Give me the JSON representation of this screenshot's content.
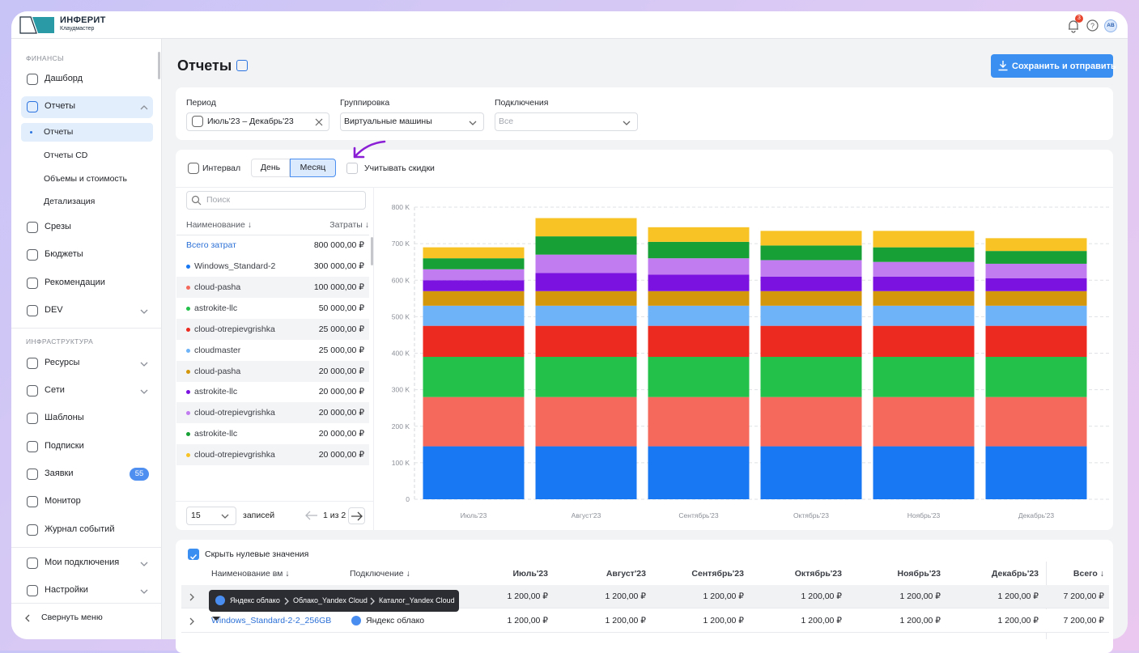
{
  "header": {
    "logo": "ИНФЕРИТ",
    "logo_sub": "Клаудмастер",
    "notifications": "3",
    "avatar": "AB"
  },
  "sidebar": {
    "groups": [
      {
        "title": "ФИНАНСЫ",
        "items": [
          {
            "label": "Дашборд"
          },
          {
            "label": "Отчеты",
            "children": [
              "Отчеты",
              "Отчеты CD",
              "Объемы и стоимость",
              "Детализация"
            ]
          },
          {
            "label": "Срезы"
          },
          {
            "label": "Бюджеты"
          },
          {
            "label": "Рекомендации"
          },
          {
            "label": "DEV"
          }
        ]
      },
      {
        "title": "ИНФРАСТРУКТУРА",
        "items": [
          {
            "label": "Ресурсы"
          },
          {
            "label": "Сети"
          },
          {
            "label": "Шаблоны"
          },
          {
            "label": "Подписки"
          },
          {
            "label": "Заявки",
            "badge": "55"
          },
          {
            "label": "Монитор"
          },
          {
            "label": "Журнал событий"
          }
        ]
      },
      {
        "items": [
          {
            "label": "Мои подключения"
          },
          {
            "label": "Настройки"
          }
        ]
      }
    ],
    "collapse": "Свернуть меню"
  },
  "page": {
    "title": "Отчеты",
    "action": "Сохранить и отправить"
  },
  "filters": [
    {
      "label": "Период",
      "value": "Июль'23 – Декабрь'23"
    },
    {
      "label": "Группировка",
      "value": "Виртуальные машины"
    },
    {
      "label": "Подключения",
      "value": "Все"
    }
  ],
  "toolbar": {
    "interval": "Интервал",
    "options": [
      "День",
      "Месяц"
    ],
    "discounts": "Учитывать скидки"
  },
  "cost_list": {
    "search": "Поиск",
    "headers": [
      "Наименование ↓",
      "Затраты ↓"
    ],
    "total_label": "Всего затрат",
    "total": "800 000,00 ₽",
    "amounts": [
      "300 000,00 ₽",
      "100 000,00 ₽",
      "50 000,00 ₽",
      "25 000,00 ₽",
      "25 000,00 ₽",
      "20 000,00 ₽",
      "20 000,00 ₽",
      "20 000,00 ₽",
      "20 000,00 ₽",
      "20 000,00 ₽"
    ],
    "page_size": "15",
    "page_size_label": "записей",
    "page": "1 из 2"
  },
  "chart_data": {
    "type": "stacked_bar",
    "categories": [
      "Июль'23",
      "Август'23",
      "Сентябрь'23",
      "Октябрь'23",
      "Ноябрь'23",
      "Декабрь'23"
    ],
    "series": [
      {
        "name": "Windows_Standard-2-2_256GB",
        "color": "#1877f2",
        "values": [
          145000,
          145000,
          145000,
          145000,
          145000,
          145000
        ]
      },
      {
        "name": "cloud-pasha",
        "color": "#f4695c",
        "values": [
          135000,
          135000,
          135000,
          135000,
          135000,
          135000
        ]
      },
      {
        "name": "astrokite-llc",
        "color": "#23c04a",
        "values": [
          110000,
          110000,
          110000,
          110000,
          110000,
          110000
        ]
      },
      {
        "name": "cloud-otrepievgrishka",
        "color": "#ed2a1f",
        "values": [
          85000,
          85000,
          85000,
          85000,
          85000,
          85000
        ]
      },
      {
        "name": "cloudmaster",
        "color": "#6eb3f7",
        "values": [
          55000,
          55000,
          55000,
          55000,
          55000,
          55000
        ]
      },
      {
        "name": "cloud-pasha",
        "color": "#d4960b",
        "values": [
          40000,
          40000,
          40000,
          40000,
          40000,
          40000
        ]
      },
      {
        "name": "astrokite-llc",
        "color": "#7c12e0",
        "values": [
          30000,
          50000,
          45000,
          40000,
          40000,
          35000
        ]
      },
      {
        "name": "cloud-otrepievgrishka",
        "color": "#c17cf0",
        "values": [
          30000,
          50000,
          45000,
          45000,
          40000,
          40000
        ]
      },
      {
        "name": "astrokite-llc",
        "color": "#17a035",
        "values": [
          30000,
          50000,
          45000,
          40000,
          40000,
          35000
        ]
      },
      {
        "name": "cloud-otrepievgrishka",
        "color": "#f7c325",
        "values": [
          30000,
          50000,
          40000,
          40000,
          45000,
          35000
        ]
      }
    ],
    "ylim": [
      0,
      800000
    ],
    "yticks": [
      0,
      {
        "value": 100000,
        "label": "100 K"
      },
      {
        "value": 200000,
        "label": "200 K"
      },
      {
        "value": 300000,
        "label": "300 K"
      },
      {
        "value": 400000,
        "label": "400 K"
      },
      {
        "value": 500000,
        "label": "500 K"
      },
      {
        "value": 600000,
        "label": "600 K"
      },
      {
        "value": 700000,
        "label": "700 K"
      },
      {
        "value": 800000,
        "label": "800 K"
      }
    ],
    "grid": true
  },
  "table": {
    "hide_zero": "Скрыть нулевые значения",
    "columns": [
      "Наименование вм ↓",
      "Подключение ↓",
      "Июль'23",
      "Август'23",
      "Сентябрь'23",
      "Октябрь'23",
      "Ноябрь'23",
      "Декабрь'23",
      "Всего ↓"
    ],
    "rows": [
      {
        "cells": [
          "1 200,00 ₽",
          "1 200,00 ₽",
          "1 200,00 ₽",
          "1 200,00 ₽",
          "1 200,00 ₽",
          "1 200,00 ₽",
          "7 200,00 ₽"
        ]
      },
      {
        "name": "Windows_Standard-2-2_256GB",
        "connection": "Яндекс облако",
        "cells": [
          "1 200,00 ₽",
          "1 200,00 ₽",
          "1 200,00 ₽",
          "1 200,00 ₽",
          "1 200,00 ₽",
          "1 200,00 ₽",
          "7 200,00 ₽"
        ]
      }
    ],
    "tooltip": [
      "Яндекс облако",
      "Облако_Yandex Cloud",
      "Каталог_Yandex Cloud"
    ]
  }
}
